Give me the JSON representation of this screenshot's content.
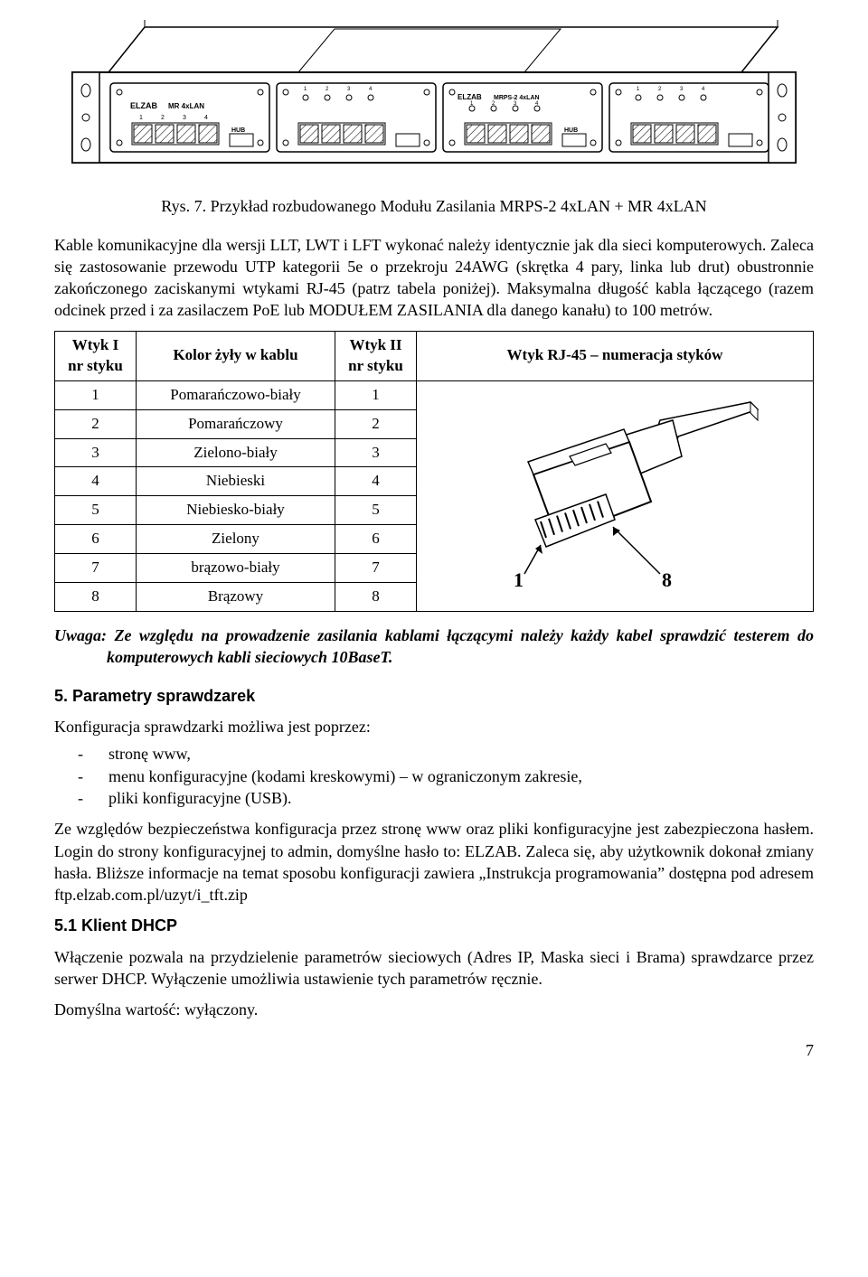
{
  "figure": {
    "caption": "Rys. 7. Przykład rozbudowanego Modułu Zasilania MRPS-2 4xLAN + MR 4xLAN",
    "panel_labels": {
      "brand": "ELZAB",
      "model_a": "MR 4xLAN",
      "model_b": "MRPS-2 4xLAN",
      "hub": "HUB",
      "port_nums": [
        "1",
        "2",
        "3",
        "4"
      ]
    },
    "colors": {
      "stroke": "#000000",
      "fill": "#ffffff",
      "hatch": "#000000"
    }
  },
  "para1": "Kable komunikacyjne dla wersji LLT, LWT i LFT wykonać należy identycznie jak dla sieci komputerowych. Zaleca się zastosowanie przewodu UTP kategorii 5e o przekroju 24AWG (skrętka 4 pary, linka lub drut) obustronnie zakończonego zaciskanymi wtykami RJ-45 (patrz tabela poniżej). Maksymalna długość kabla łączącego (razem odcinek przed i za zasilaczem PoE lub MODUŁEM ZASILANIA dla danego kanału) to 100 metrów.",
  "table": {
    "headers": {
      "col1": "Wtyk I\nnr styku",
      "col2": "Kolor żyły w kablu",
      "col3": "Wtyk II\nnr styku",
      "col4": "Wtyk RJ-45 – numeracja styków"
    },
    "rows": [
      {
        "a": "1",
        "b": "Pomarańczowo-biały",
        "c": "1"
      },
      {
        "a": "2",
        "b": "Pomarańczowy",
        "c": "2"
      },
      {
        "a": "3",
        "b": "Zielono-biały",
        "c": "3"
      },
      {
        "a": "4",
        "b": "Niebieski",
        "c": "4"
      },
      {
        "a": "5",
        "b": "Niebiesko-biały",
        "c": "5"
      },
      {
        "a": "6",
        "b": "Zielony",
        "c": "6"
      },
      {
        "a": "7",
        "b": "brązowo-biały",
        "c": "7"
      },
      {
        "a": "8",
        "b": "Brązowy",
        "c": "8"
      }
    ],
    "rj45": {
      "pin_left": "1",
      "pin_right": "8"
    }
  },
  "uwaga": {
    "label": "Uwaga:",
    "text": "Ze względu na prowadzenie zasilania kablami łączącymi należy każdy kabel sprawdzić testerem do komputerowych kabli sieciowych 10BaseT."
  },
  "section5": {
    "heading": "5. Parametry sprawdzarek",
    "intro": "Konfiguracja sprawdzarki możliwa jest poprzez:",
    "items": [
      "stronę www,",
      "menu konfiguracyjne (kodami kreskowymi) – w ograniczonym zakresie,",
      "pliki konfiguracyjne (USB)."
    ],
    "para": "Ze względów bezpieczeństwa konfiguracja przez stronę www oraz pliki konfiguracyjne jest zabezpieczona hasłem. Login do strony konfiguracyjnej to admin, domyślne hasło to: ELZAB. Zaleca się, aby użytkownik dokonał zmiany hasła. Bliższe informacje na temat sposobu konfiguracji zawiera „Instrukcja programowania” dostępna pod adresem ftp.elzab.com.pl/uzyt/i_tft.zip"
  },
  "section51": {
    "heading": "5.1 Klient DHCP",
    "para": "Włączenie pozwala na przydzielenie parametrów sieciowych (Adres IP, Maska sieci i Brama) sprawdzarce przez serwer DHCP. Wyłączenie umożliwia ustawienie tych parametrów ręcznie.",
    "default": "Domyślna wartość: wyłączony."
  },
  "page_number": "7"
}
